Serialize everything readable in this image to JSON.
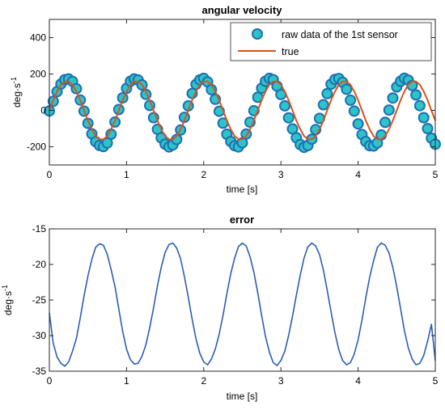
{
  "chart_data": [
    {
      "type": "scatter",
      "title": "angular velocity",
      "xlabel": "time [s]",
      "ylabel": "deg·s",
      "ylabel_exp": "-1",
      "xlim": [
        0,
        5
      ],
      "ylim": [
        -300,
        500
      ],
      "xticks": [
        0,
        1,
        2,
        3,
        4,
        5
      ],
      "yticks": [
        -200,
        0,
        200,
        400
      ],
      "legend_position": "top-right",
      "grid": false,
      "series": [
        {
          "name": "raw data of the 1st sensor",
          "marker": "circle",
          "color": "#1f6fb2",
          "fill": "#2dc4c8",
          "x": [
            0.0,
            0.05,
            0.1,
            0.15,
            0.2,
            0.25,
            0.3,
            0.35,
            0.4,
            0.45,
            0.5,
            0.55,
            0.6,
            0.65,
            0.7,
            0.75,
            0.8,
            0.85,
            0.9,
            0.95,
            1.0,
            1.05,
            1.1,
            1.15,
            1.2,
            1.25,
            1.3,
            1.35,
            1.4,
            1.45,
            1.5,
            1.55,
            1.6,
            1.65,
            1.7,
            1.75,
            1.8,
            1.85,
            1.9,
            1.95,
            2.0,
            2.05,
            2.1,
            2.15,
            2.2,
            2.25,
            2.3,
            2.35,
            2.4,
            2.45,
            2.5,
            2.55,
            2.6,
            2.65,
            2.7,
            2.75,
            2.8,
            2.85,
            2.9,
            2.95,
            3.0,
            3.05,
            3.1,
            3.15,
            3.2,
            3.25,
            3.3,
            3.35,
            3.4,
            3.45,
            3.5,
            3.55,
            3.6,
            3.65,
            3.7,
            3.75,
            3.8,
            3.85,
            3.9,
            3.95,
            4.0,
            4.05,
            4.1,
            4.15,
            4.2,
            4.25,
            4.3,
            4.35,
            4.4,
            4.45,
            4.5,
            4.55,
            4.6,
            4.65,
            4.7,
            4.75,
            4.8,
            4.85,
            4.9,
            4.95,
            5.0
          ],
          "values": [
            -3,
            50,
            103,
            145,
            169,
            173,
            159,
            119,
            57,
            -4,
            -71,
            -129,
            -172,
            -193,
            -199,
            -179,
            -131,
            -64,
            5,
            69,
            121,
            160,
            173,
            167,
            140,
            88,
            27,
            -40,
            -104,
            -151,
            -186,
            -201,
            -190,
            -160,
            -108,
            -38,
            25,
            93,
            143,
            168,
            176,
            157,
            114,
            61,
            -5,
            -70,
            -131,
            -171,
            -194,
            -201,
            -178,
            -130,
            -65,
            -2,
            72,
            122,
            160,
            176,
            169,
            133,
            87,
            25,
            -41,
            -102,
            -150,
            -188,
            -203,
            -193,
            -158,
            -106,
            -44,
            31,
            92,
            144,
            170,
            175,
            154,
            116,
            56,
            -4,
            -74,
            -133,
            -171,
            -194,
            -196,
            -179,
            -135,
            -66,
            2,
            68,
            129,
            160,
            177,
            166,
            137,
            85,
            26,
            -40,
            -100,
            -153,
            -186
          ]
        },
        {
          "name": "true",
          "color": "#d95319",
          "x": [
            0.0,
            0.05,
            0.1,
            0.15,
            0.2,
            0.25,
            0.3,
            0.35,
            0.4,
            0.45,
            0.5,
            0.55,
            0.6,
            0.65,
            0.7,
            0.75,
            0.8,
            0.85,
            0.9,
            0.95,
            1.0,
            1.05,
            1.1,
            1.15,
            1.2,
            1.25,
            1.3,
            1.35,
            1.4,
            1.45,
            1.5,
            1.55,
            1.6,
            1.65,
            1.7,
            1.75,
            1.8,
            1.85,
            1.9,
            1.95,
            2.0,
            2.05,
            2.1,
            2.15,
            2.2,
            2.25,
            2.3,
            2.35,
            2.4,
            2.45,
            2.5,
            2.55,
            2.6,
            2.65,
            2.7,
            2.75,
            2.8,
            2.85,
            2.9,
            2.95,
            3.0,
            3.05,
            3.1,
            3.15,
            3.2,
            3.25,
            3.3,
            3.35,
            3.4,
            3.45,
            3.5,
            3.55,
            3.6,
            3.65,
            3.7,
            3.75,
            3.8,
            3.85,
            3.9,
            3.95,
            4.0,
            4.05,
            4.1,
            4.15,
            4.2,
            4.25,
            4.3,
            4.35,
            4.4,
            4.45,
            4.5,
            4.55,
            4.6,
            4.65,
            4.7,
            4.75,
            4.8,
            4.85,
            4.9,
            4.95,
            5.0
          ],
          "values": [
            0,
            56,
            104,
            141,
            159,
            159,
            141,
            104,
            56,
            0,
            -56,
            -104,
            -141,
            -159,
            -159,
            -141,
            -104,
            -56,
            0,
            56,
            104,
            141,
            159,
            159,
            141,
            104,
            56,
            0,
            -56,
            -104,
            -141,
            -159,
            -159,
            -141,
            -104,
            -56,
            0,
            56,
            104,
            141,
            159,
            159,
            141,
            104,
            56,
            0,
            -56,
            -104,
            -141,
            -159,
            -159,
            -141,
            -104,
            -56,
            0,
            56,
            104,
            141,
            159,
            159,
            141,
            104,
            56,
            0,
            -56,
            -104,
            -141,
            -159,
            -159,
            -141,
            -104,
            -56,
            0,
            56,
            104,
            141,
            159,
            159,
            141,
            104,
            56,
            0,
            -56,
            -104,
            -141,
            -159,
            -159,
            -141,
            -104,
            -56,
            0,
            56,
            104,
            141,
            159,
            159,
            141,
            104,
            56,
            0,
            -56
          ]
        }
      ]
    },
    {
      "type": "line",
      "title": "error",
      "xlabel": "time [s]",
      "ylabel": "deg·s",
      "ylabel_exp": "-1",
      "xlim": [
        0,
        5
      ],
      "ylim": [
        -35,
        -15
      ],
      "xticks": [
        0,
        1,
        2,
        3,
        4,
        5
      ],
      "yticks": [
        -35,
        -30,
        -25,
        -20,
        -15
      ],
      "grid": false,
      "series": [
        {
          "color": "#2a5fb0",
          "x": [
            0.0,
            0.05,
            0.1,
            0.15,
            0.2,
            0.25,
            0.3,
            0.35,
            0.4,
            0.45,
            0.5,
            0.55,
            0.6,
            0.65,
            0.7,
            0.75,
            0.8,
            0.85,
            0.9,
            0.95,
            1.0,
            1.05,
            1.1,
            1.15,
            1.2,
            1.25,
            1.3,
            1.35,
            1.4,
            1.45,
            1.5,
            1.55,
            1.6,
            1.65,
            1.7,
            1.75,
            1.8,
            1.85,
            1.9,
            1.95,
            2.0,
            2.05,
            2.1,
            2.15,
            2.2,
            2.25,
            2.3,
            2.35,
            2.4,
            2.45,
            2.5,
            2.55,
            2.6,
            2.65,
            2.7,
            2.75,
            2.8,
            2.85,
            2.9,
            2.95,
            3.0,
            3.05,
            3.1,
            3.15,
            3.2,
            3.25,
            3.3,
            3.35,
            3.4,
            3.45,
            3.5,
            3.55,
            3.6,
            3.65,
            3.7,
            3.75,
            3.8,
            3.85,
            3.9,
            3.95,
            4.0,
            4.05,
            4.1,
            4.15,
            4.2,
            4.25,
            4.3,
            4.35,
            4.4,
            4.45,
            4.5,
            4.55,
            4.6,
            4.65,
            4.7,
            4.75,
            4.8,
            4.85,
            4.9,
            4.95,
            5.0
          ],
          "values": [
            -26.8,
            -31.1,
            -33.0,
            -33.9,
            -34.3,
            -33.7,
            -32.2,
            -30.4,
            -27.5,
            -24.4,
            -21.6,
            -19.3,
            -17.6,
            -17.1,
            -17.3,
            -18.6,
            -20.7,
            -23.1,
            -26.3,
            -29.4,
            -31.9,
            -33.4,
            -34.0,
            -33.9,
            -32.9,
            -31.3,
            -28.9,
            -26.1,
            -23.0,
            -20.4,
            -18.3,
            -17.2,
            -17.0,
            -17.7,
            -19.2,
            -21.7,
            -24.6,
            -27.7,
            -30.5,
            -32.5,
            -33.7,
            -34.1,
            -33.3,
            -31.9,
            -29.8,
            -27.2,
            -24.1,
            -21.3,
            -19.1,
            -17.5,
            -17.0,
            -17.4,
            -18.9,
            -21.1,
            -24.0,
            -27.2,
            -30.1,
            -32.3,
            -33.8,
            -34.2,
            -33.5,
            -32.2,
            -30.0,
            -27.3,
            -24.3,
            -21.5,
            -19.1,
            -17.5,
            -17.0,
            -17.4,
            -18.6,
            -20.8,
            -23.6,
            -26.7,
            -29.6,
            -32.0,
            -33.5,
            -34.1,
            -33.8,
            -32.6,
            -30.6,
            -27.8,
            -24.7,
            -21.8,
            -19.5,
            -17.6,
            -17.0,
            -17.3,
            -18.4,
            -20.4,
            -23.1,
            -26.2,
            -29.3,
            -31.7,
            -33.3,
            -34.1,
            -33.9,
            -32.8,
            -30.8,
            -28.4,
            -33.5
          ]
        }
      ]
    }
  ]
}
